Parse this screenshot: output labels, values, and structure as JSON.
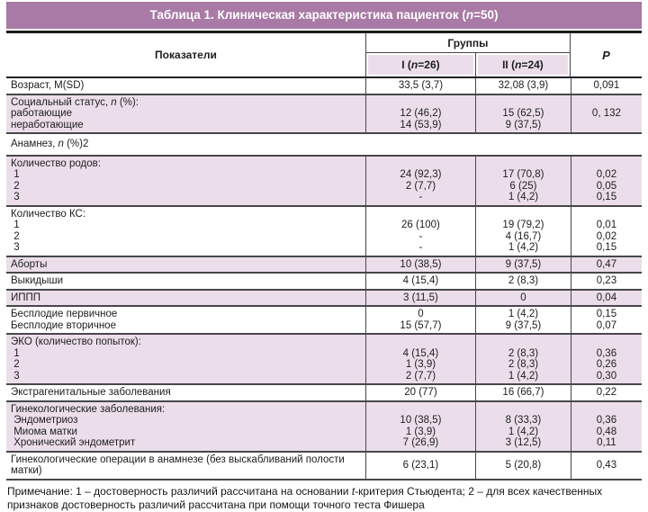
{
  "title": "Таблица 1. Клиническая характеристика пациенток (n=50)",
  "colors": {
    "header_bg": "#a87aa5",
    "row_pink": "#ebdeea"
  },
  "header": {
    "indicators": "Показатели",
    "groups": "Группы",
    "group1": "I (n=26)",
    "group2": "II (n=24)",
    "p": "P"
  },
  "rows": [
    {
      "type": "data",
      "bg": "white",
      "label": [
        "Возраст, M(SD)"
      ],
      "group1": [
        "33,5 (3,7)"
      ],
      "group2": [
        "32,08 (3,9)"
      ],
      "p": [
        "0,091"
      ]
    },
    {
      "type": "data",
      "bg": "pink",
      "label": [
        "Социальный статус, n (%):",
        "работающие",
        "неработающие"
      ],
      "group1": [
        "",
        "12 (46,2)",
        "14 (53,9)"
      ],
      "group2": [
        "",
        "15 (62,5)",
        "9 (37,5)"
      ],
      "p": [
        "",
        "0, 132",
        ""
      ]
    },
    {
      "type": "section",
      "label": "Анамнез, n (%)2"
    },
    {
      "type": "data",
      "bg": "pink",
      "label": [
        "Количество родов:",
        " 1",
        " 2",
        " 3"
      ],
      "group1": [
        "",
        "24 (92,3)",
        "2 (7,7)",
        "-"
      ],
      "group2": [
        "",
        "17 (70,8)",
        "6 (25)",
        "1 (4,2)"
      ],
      "p": [
        "",
        "0,02",
        "0,05",
        "0,15"
      ]
    },
    {
      "type": "data",
      "bg": "white",
      "label": [
        "Количество КС:",
        " 1",
        " 2",
        " 3"
      ],
      "group1": [
        "",
        "26 (100)",
        "-",
        "-"
      ],
      "group2": [
        "",
        "19 (79,2)",
        "4 (16,7)",
        "1 (4,2)"
      ],
      "p": [
        "",
        "0,01",
        "0,02",
        "0,15"
      ]
    },
    {
      "type": "data",
      "bg": "pink",
      "label": [
        "Аборты"
      ],
      "group1": [
        "10 (38,5)"
      ],
      "group2": [
        "9 (37,5)"
      ],
      "p": [
        "0,47"
      ]
    },
    {
      "type": "data",
      "bg": "white",
      "label": [
        "Выкидыши"
      ],
      "group1": [
        "4 (15,4)"
      ],
      "group2": [
        "2 (8,3)"
      ],
      "p": [
        "0,23"
      ]
    },
    {
      "type": "data",
      "bg": "pink",
      "label": [
        "ИППП"
      ],
      "group1": [
        "3 (11,5)"
      ],
      "group2": [
        "0"
      ],
      "p": [
        "0,04"
      ]
    },
    {
      "type": "data",
      "bg": "white",
      "label": [
        "Бесплодие первичное",
        "Бесплодие вторичное"
      ],
      "group1": [
        "0",
        "15 (57,7)"
      ],
      "group2": [
        "1 (4,2)",
        "9 (37,5)"
      ],
      "p": [
        "0,15",
        "0,07"
      ]
    },
    {
      "type": "data",
      "bg": "pink",
      "label": [
        "ЭКО (количество попыток):",
        " 1",
        " 2",
        " 3"
      ],
      "group1": [
        "",
        "4 (15,4)",
        "1 (3,9)",
        "2 (7,7)"
      ],
      "group2": [
        "",
        "2 (8,3)",
        "2 (8,3)",
        "1 (4,2)"
      ],
      "p": [
        "",
        "0,36",
        "0,26",
        "0,30"
      ]
    },
    {
      "type": "data",
      "bg": "white",
      "label": [
        "Экстрагенитальные заболевания"
      ],
      "group1": [
        "20 (77)"
      ],
      "group2": [
        "16 (66,7)"
      ],
      "p": [
        "0,22"
      ]
    },
    {
      "type": "data",
      "bg": "pink",
      "label": [
        "Гинекологические заболевания:",
        " Эндометриоз",
        " Миома матки",
        " Хронический эндометрит"
      ],
      "group1": [
        "",
        "10 (38,5)",
        "1 (3,9)",
        "7 (26,9)"
      ],
      "group2": [
        "",
        "8 (33,3)",
        "1 (4,2)",
        "3 (12,5)"
      ],
      "p": [
        "",
        "0,36",
        "0,48",
        "0,11"
      ]
    },
    {
      "type": "data",
      "bg": "white",
      "label": [
        "Гинекологические операции в анамнезе (без выскабливаний полости матки)"
      ],
      "group1": [
        "6 (23,1)"
      ],
      "group2": [
        "5 (20,8)"
      ],
      "p": [
        "0,43"
      ]
    }
  ],
  "footnote": "Примечание: 1 – достоверность различий рассчитана на основании t-критерия Стьюдента; 2 – для всех качественных признаков достоверность различий рассчитана при помощи точного теста Фишера"
}
